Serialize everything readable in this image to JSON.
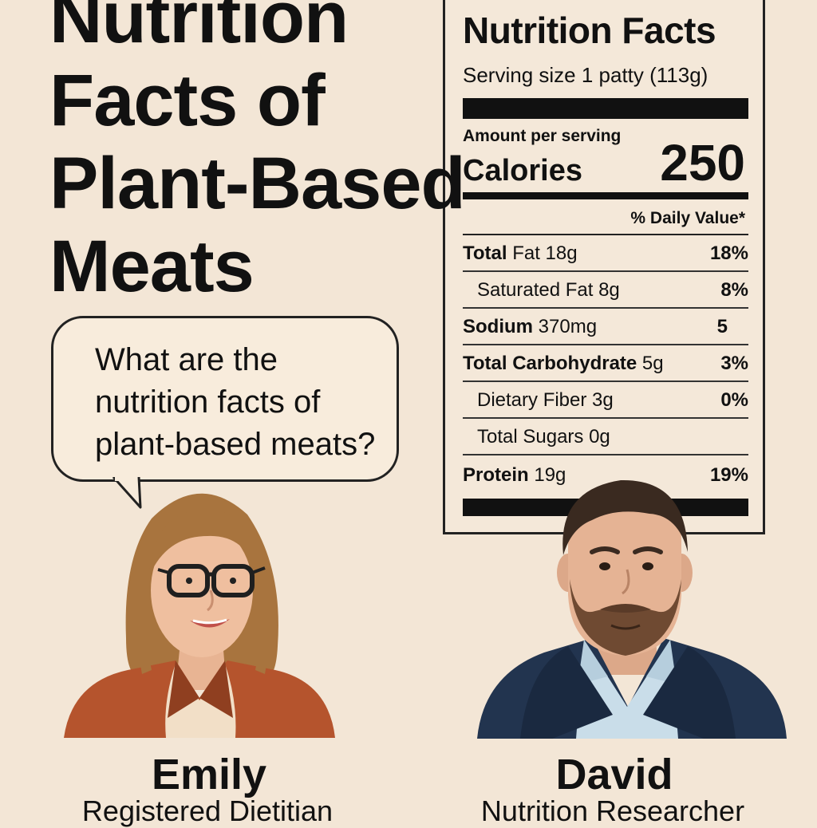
{
  "title": "Nutrition Facts of Plant-Based Meats",
  "bubble": {
    "text": "What are the nutrition facts of plant-based meats?"
  },
  "label": {
    "title": "Nutrition Facts",
    "serving": "Serving size  1 patty (113g)",
    "amount_per_serving": "Amount per serving",
    "calories_label": "Calories",
    "calories_value": "250",
    "dv_header": "% Daily Value*",
    "rows": [
      {
        "bold": "Total",
        "rest": " Fat 18g",
        "dv": "18%"
      },
      {
        "bold": "",
        "rest": "Saturated Fat 8g",
        "dv": "8%"
      },
      {
        "bold": "Sodium",
        "rest": " 370mg",
        "dv": "5"
      },
      {
        "bold": "Total Carbohydrate",
        "rest": " 5g",
        "dv": "3%"
      },
      {
        "bold": "",
        "rest": "Dietary Fiber 3g",
        "dv": "0%"
      },
      {
        "bold": "",
        "rest": "Total Sugars 0g",
        "dv": ""
      },
      {
        "bold": "Protein",
        "rest": " 19g",
        "dv": "19%"
      }
    ]
  },
  "people": [
    {
      "name": "Emily",
      "role": "Registered Dietitian"
    },
    {
      "name": "David",
      "role": "Nutrition Researcher"
    }
  ],
  "colors": {
    "background": "#f3e6d6",
    "emily_jacket": "#b5542d",
    "emily_hair": "#a8743e",
    "david_jacket": "#22344f",
    "david_shirt": "#c9dde9"
  }
}
